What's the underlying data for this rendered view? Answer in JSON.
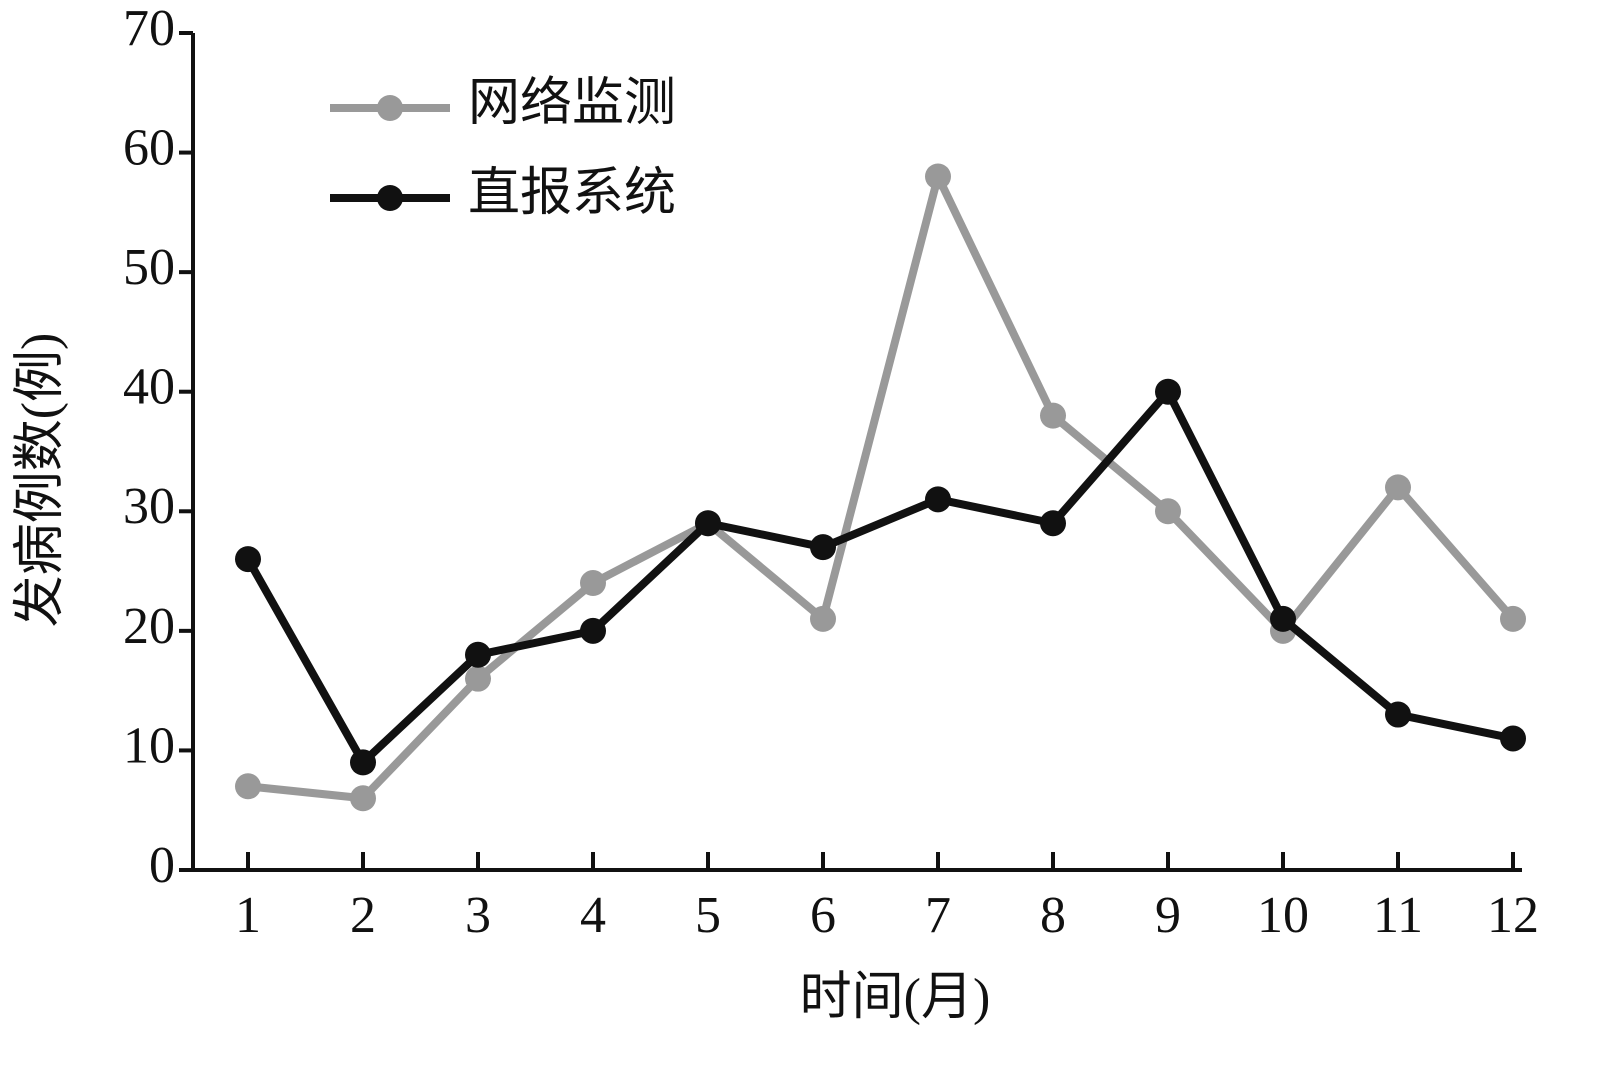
{
  "chart_data": {
    "type": "line",
    "x_label": "时间(月)",
    "y_label": "发病例数(例)",
    "categories": [
      "1",
      "2",
      "3",
      "4",
      "5",
      "6",
      "7",
      "8",
      "9",
      "10",
      "11",
      "12"
    ],
    "series": [
      {
        "name": "网络监测",
        "color": "#999999",
        "values": [
          7,
          6,
          16,
          24,
          29,
          21,
          58,
          38,
          30,
          20,
          32,
          21
        ]
      },
      {
        "name": "直报系统",
        "color": "#111111",
        "values": [
          26,
          9,
          18,
          20,
          29,
          27,
          31,
          29,
          40,
          21,
          13,
          11
        ]
      }
    ],
    "ylim": [
      0,
      70
    ],
    "yticks": [
      0,
      10,
      20,
      30,
      40,
      50,
      60,
      70
    ],
    "legend": "upper-left",
    "grid": false
  }
}
